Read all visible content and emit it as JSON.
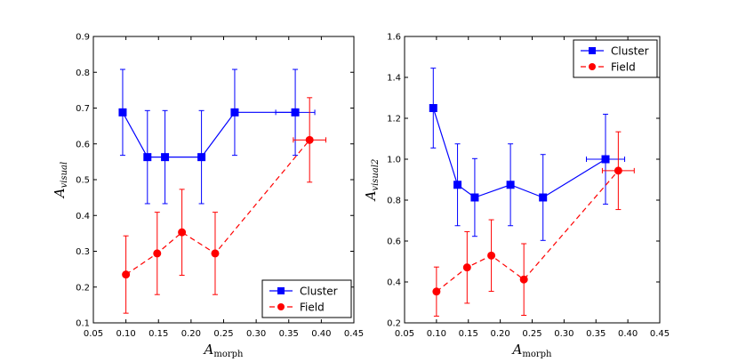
{
  "chart_data": [
    {
      "type": "line",
      "xlabel": "A",
      "xlabel_sub": "morph",
      "ylabel": "A",
      "ylabel_sub": "visual",
      "xlim": [
        0.05,
        0.45
      ],
      "ylim": [
        0.1,
        0.9
      ],
      "xticks": [
        "0.05",
        "0.10",
        "0.15",
        "0.20",
        "0.25",
        "0.30",
        "0.35",
        "0.40",
        "0.45"
      ],
      "yticks": [
        "0.1",
        "0.2",
        "0.3",
        "0.4",
        "0.5",
        "0.6",
        "0.7",
        "0.8",
        "0.9"
      ],
      "grid": false,
      "legend_position": "lower-right",
      "series": [
        {
          "name": "Cluster",
          "color": "#0000ff",
          "marker": "square",
          "linestyle": "solid",
          "x": [
            0.095,
            0.133,
            0.16,
            0.216,
            0.267,
            0.36
          ],
          "y": [
            0.688,
            0.563,
            0.563,
            0.563,
            0.688,
            0.688
          ],
          "yerr": [
            0.12,
            0.13,
            0.13,
            0.13,
            0.12,
            0.12
          ],
          "xerr": [
            0,
            0,
            0,
            0,
            0,
            0.03
          ]
        },
        {
          "name": "Field",
          "color": "#ff0000",
          "marker": "circle",
          "linestyle": "dashed",
          "x": [
            0.1,
            0.148,
            0.186,
            0.237,
            0.382
          ],
          "y": [
            0.235,
            0.294,
            0.353,
            0.294,
            0.611
          ],
          "yerr": [
            0.108,
            0.115,
            0.12,
            0.115,
            0.118
          ],
          "xerr": [
            0,
            0,
            0,
            0,
            0.025
          ]
        }
      ]
    },
    {
      "type": "line",
      "xlabel": "A",
      "xlabel_sub": "morph",
      "ylabel": "A",
      "ylabel_sub": "visual2",
      "xlim": [
        0.05,
        0.45
      ],
      "ylim": [
        0.2,
        1.6
      ],
      "xticks": [
        "0.05",
        "0.10",
        "0.15",
        "0.20",
        "0.25",
        "0.30",
        "0.35",
        "0.40",
        "0.45"
      ],
      "yticks": [
        "0.2",
        "0.4",
        "0.6",
        "0.8",
        "1.0",
        "1.2",
        "1.4",
        "1.6"
      ],
      "grid": false,
      "legend_position": "upper-right",
      "series": [
        {
          "name": "Cluster",
          "color": "#0000ff",
          "marker": "square",
          "linestyle": "solid",
          "x": [
            0.095,
            0.133,
            0.16,
            0.216,
            0.267,
            0.365
          ],
          "y": [
            1.25,
            0.875,
            0.813,
            0.875,
            0.813,
            1.0
          ],
          "yerr": [
            0.195,
            0.2,
            0.19,
            0.2,
            0.21,
            0.22
          ],
          "xerr": [
            0,
            0,
            0,
            0,
            0,
            0.03
          ]
        },
        {
          "name": "Field",
          "color": "#ff0000",
          "marker": "circle",
          "linestyle": "dashed",
          "x": [
            0.1,
            0.148,
            0.186,
            0.237,
            0.385
          ],
          "y": [
            0.353,
            0.471,
            0.529,
            0.412,
            0.944
          ],
          "yerr": [
            0.12,
            0.175,
            0.175,
            0.175,
            0.19
          ],
          "xerr": [
            0,
            0,
            0,
            0,
            0.025
          ]
        }
      ]
    }
  ]
}
